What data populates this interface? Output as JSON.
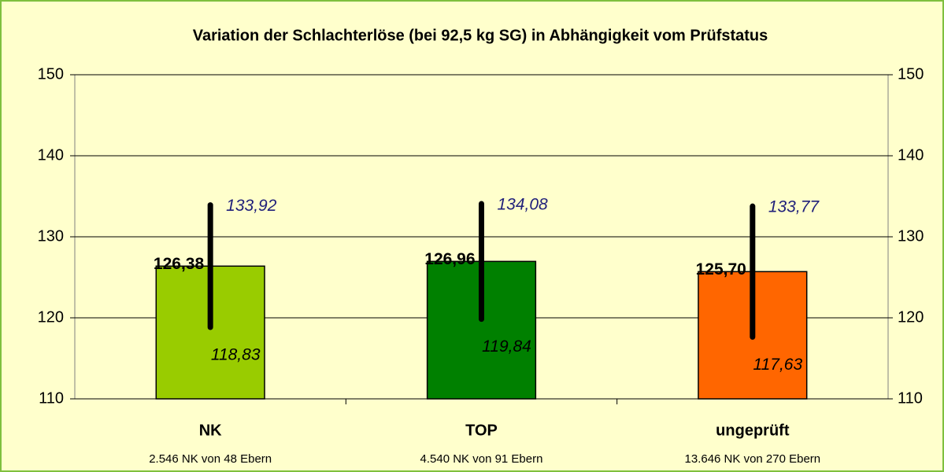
{
  "chart_data": {
    "type": "bar",
    "title": "Variation der Schlachterlöse (bei 92,5 kg SG) in Abhängigkeit vom Prüfstatus",
    "categories": [
      "NK",
      "TOP",
      "ungeprüft"
    ],
    "category_notes": [
      "2.546 NK von 48 Ebern",
      "4.540 NK von 91 Ebern",
      "13.646 NK von 270 Ebern"
    ],
    "values": [
      126.38,
      126.96,
      125.7
    ],
    "value_labels": [
      "126,38",
      "126,96",
      "125,70"
    ],
    "low": [
      118.83,
      119.84,
      117.63
    ],
    "low_labels": [
      "118,83",
      "119,84",
      "117,63"
    ],
    "high": [
      133.92,
      134.08,
      133.77
    ],
    "high_labels": [
      "133,92",
      "134,08",
      "133,77"
    ],
    "colors": [
      "#99cc00",
      "#008000",
      "#ff6600"
    ],
    "ylim": [
      110,
      150
    ],
    "yticks": [
      110,
      120,
      130,
      140,
      150
    ],
    "y2lim": [
      110,
      150
    ],
    "y2ticks": [
      110,
      120,
      130,
      140,
      150
    ],
    "grid": true
  }
}
